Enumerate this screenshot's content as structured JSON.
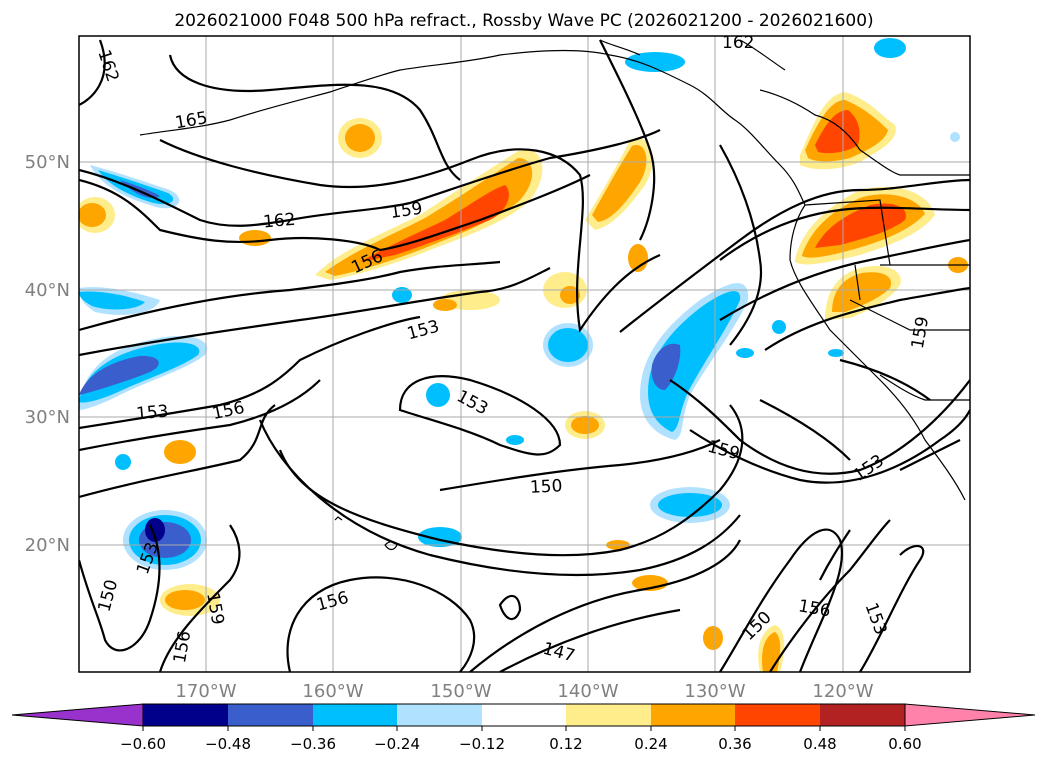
{
  "title": "2026021000 F048 500 hPa refract., Rossby Wave PC (2026021200 - 2026021600)",
  "axes": {
    "lat_labels": [
      "50°N",
      "40°N",
      "30°N",
      "20°N"
    ],
    "lon_labels": [
      "170°W",
      "160°W",
      "150°W",
      "140°W",
      "130°W",
      "120°W"
    ]
  },
  "contour_labels": [
    "162",
    "165",
    "162",
    "159",
    "156",
    "162",
    "153",
    "156",
    "153",
    "153",
    "150",
    "159",
    "159",
    "153",
    "153",
    "150",
    "156",
    "159",
    "156",
    "150",
    "156",
    "153",
    "147",
    "150"
  ],
  "colorbar": {
    "ticks": [
      "−0.60",
      "−0.48",
      "−0.36",
      "−0.24",
      "−0.12",
      "0.12",
      "0.24",
      "0.36",
      "0.48",
      "0.60"
    ],
    "colors": [
      "#9932CC",
      "#00008B",
      "#3A5FCD",
      "#00BFFF",
      "#B0E2FF",
      "#FFFFFF",
      "#FFEC8B",
      "#FFA500",
      "#FF4500",
      "#B22222",
      "#FF82AB"
    ]
  }
}
